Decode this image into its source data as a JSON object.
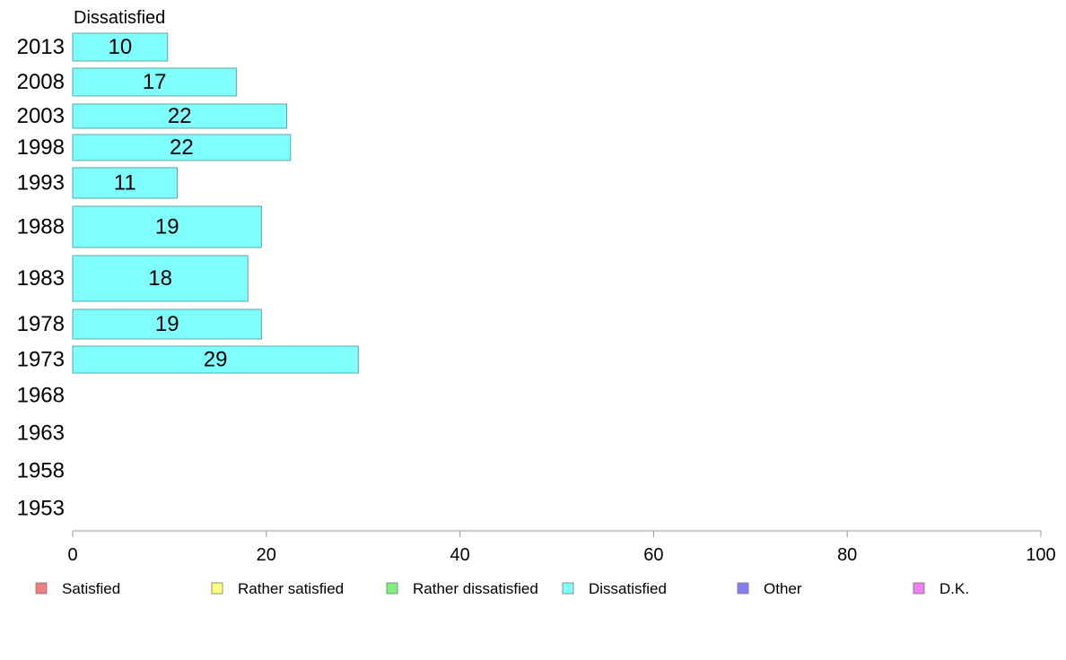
{
  "chart_data": {
    "type": "bar",
    "orientation": "horizontal",
    "title": "Dissatisfied",
    "categories": [
      "2013",
      "2008",
      "2003",
      "1998",
      "1993",
      "1988",
      "1983",
      "1978",
      "1973",
      "1968",
      "1963",
      "1958",
      "1953"
    ],
    "values": [
      10,
      17,
      22,
      22,
      11,
      19,
      18,
      19,
      29,
      null,
      null,
      null,
      null
    ],
    "value_extents": [
      9.8,
      16.9,
      22.1,
      22.5,
      10.8,
      19.5,
      18.1,
      19.5,
      29.5,
      null,
      null,
      null,
      null
    ],
    "xlim": [
      0,
      100
    ],
    "xticks": [
      "0",
      "20",
      "40",
      "60",
      "80",
      "100"
    ],
    "grid": false,
    "bar_color": "#80ffff",
    "bar_stroke": "#5aa5a5",
    "legend": {
      "placement": "bottom",
      "items": [
        {
          "label": "Satisfied",
          "color": "#f08080"
        },
        {
          "label": "Rather satisfied",
          "color": "#ffff80"
        },
        {
          "label": "Rather dissatisfied",
          "color": "#80f080"
        },
        {
          "label": "Dissatisfied",
          "color": "#80ffff"
        },
        {
          "label": "Other",
          "color": "#8080f0"
        },
        {
          "label": "D.K.",
          "color": "#f080f0"
        }
      ]
    }
  }
}
